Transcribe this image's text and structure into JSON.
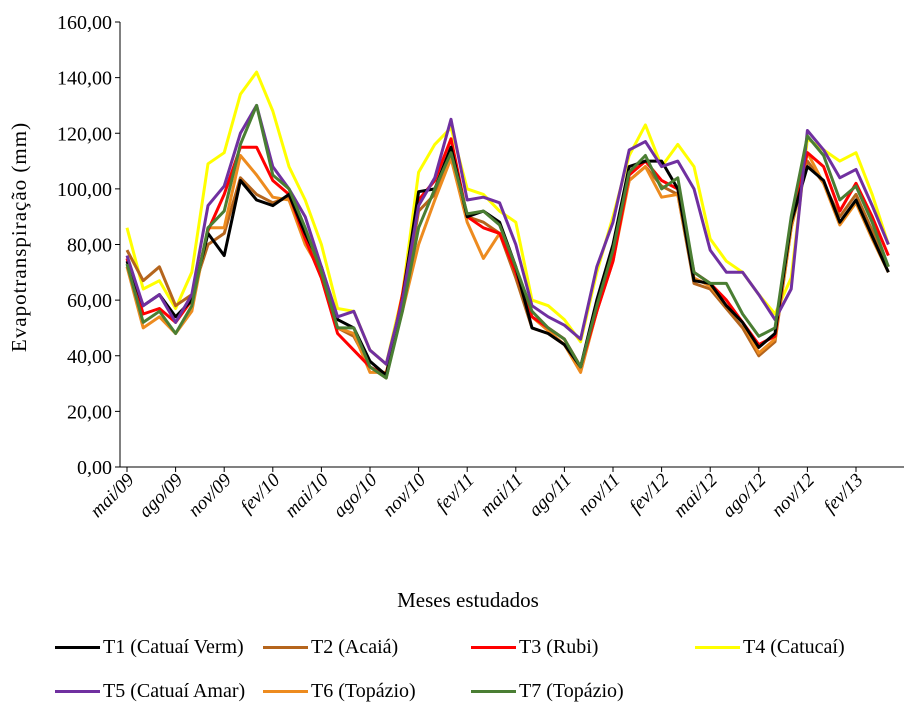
{
  "chart_data": {
    "type": "line",
    "title": "",
    "xlabel": "Meses estudados",
    "ylabel": "Evapotranspiração (mm)",
    "ylim": [
      0,
      160
    ],
    "yticks": [
      "0,00",
      "20,00",
      "40,00",
      "60,00",
      "80,00",
      "100,00",
      "120,00",
      "140,00",
      "160,00"
    ],
    "ytick_values": [
      0,
      20,
      40,
      60,
      80,
      100,
      120,
      140,
      160
    ],
    "x": [
      "mai/09",
      "jun/09",
      "jul/09",
      "ago/09",
      "set/09",
      "out/09",
      "nov/09",
      "dez/09",
      "jan/10",
      "fev/10",
      "mar/10",
      "abr/10",
      "mai/10",
      "jun/10",
      "jul/10",
      "ago/10",
      "set/10",
      "out/10",
      "nov/10",
      "dez/10",
      "jan/11",
      "fev/11",
      "mar/11",
      "abr/11",
      "mai/11",
      "jun/11",
      "jul/11",
      "ago/11",
      "set/11",
      "out/11",
      "nov/11",
      "dez/11",
      "jan/12",
      "fev/12",
      "mar/12",
      "abr/12",
      "mai/12",
      "jun/12",
      "jul/12",
      "ago/12",
      "set/12",
      "out/12",
      "nov/12",
      "dez/12",
      "jan/13",
      "fev/13",
      "mar/13",
      "abr/13"
    ],
    "xtick_labels": [
      "mai/09",
      "ago/09",
      "nov/09",
      "fev/10",
      "mai/10",
      "ago/10",
      "nov/10",
      "fev/11",
      "mai/11",
      "ago/11",
      "nov/11",
      "fev/12",
      "mai/12",
      "ago/12",
      "nov/12",
      "fev/13"
    ],
    "grid": false,
    "legend_position": "bottom",
    "series": [
      {
        "name": "T1 (Catuaí Verm)",
        "color": "#000000",
        "values": [
          74,
          58,
          62,
          54,
          60,
          84,
          76,
          103,
          96,
          94,
          98,
          84,
          72,
          53,
          50,
          38,
          33,
          60,
          99,
          100,
          115,
          90,
          92,
          88,
          72,
          50,
          48,
          44,
          36,
          60,
          80,
          108,
          110,
          110,
          100,
          67,
          66,
          58,
          52,
          43,
          48,
          88,
          108,
          103,
          88,
          96,
          83,
          70
        ]
      },
      {
        "name": "T2 (Acaiá)",
        "color": "#B5651D",
        "values": [
          78,
          67,
          72,
          58,
          62,
          80,
          84,
          104,
          98,
          95,
          97,
          82,
          68,
          50,
          47,
          36,
          32,
          58,
          92,
          98,
          112,
          90,
          88,
          84,
          68,
          50,
          48,
          44,
          35,
          56,
          78,
          103,
          108,
          101,
          98,
          66,
          64,
          57,
          50,
          40,
          45,
          86,
          110,
          102,
          90,
          98,
          85,
          72
        ]
      },
      {
        "name": "T3 (Rubi)",
        "color": "#FF0000",
        "values": [
          75,
          55,
          57,
          52,
          60,
          85,
          98,
          115,
          115,
          103,
          98,
          82,
          68,
          48,
          42,
          36,
          33,
          62,
          96,
          103,
          118,
          90,
          86,
          84,
          70,
          54,
          50,
          46,
          36,
          56,
          74,
          105,
          110,
          103,
          100,
          70,
          66,
          60,
          52,
          44,
          47,
          89,
          113,
          108,
          92,
          102,
          90,
          76
        ]
      },
      {
        "name": "T4 (Catucaí)",
        "color": "#FFFF00",
        "values": [
          86,
          64,
          67,
          57,
          70,
          109,
          113,
          134,
          142,
          128,
          108,
          96,
          80,
          57,
          56,
          42,
          37,
          62,
          106,
          116,
          122,
          100,
          98,
          92,
          88,
          60,
          58,
          53,
          45,
          70,
          90,
          112,
          123,
          108,
          116,
          108,
          82,
          74,
          70,
          62,
          55,
          68,
          118,
          114,
          110,
          113,
          98,
          80
        ]
      },
      {
        "name": "T5 (Catuaí Amar)",
        "color": "#7030A0",
        "values": [
          76,
          58,
          62,
          52,
          62,
          94,
          101,
          120,
          130,
          108,
          100,
          90,
          72,
          54,
          56,
          42,
          37,
          60,
          94,
          104,
          125,
          96,
          97,
          95,
          80,
          58,
          54,
          51,
          46,
          72,
          88,
          114,
          117,
          108,
          110,
          100,
          78,
          70,
          70,
          62,
          53,
          64,
          121,
          114,
          104,
          107,
          94,
          80
        ]
      },
      {
        "name": "T6 (Topázio)",
        "color": "#ED8B1F",
        "values": [
          72,
          50,
          54,
          48,
          56,
          86,
          86,
          112,
          105,
          97,
          96,
          80,
          70,
          50,
          48,
          34,
          34,
          56,
          80,
          96,
          111,
          88,
          75,
          84,
          70,
          54,
          49,
          44,
          34,
          56,
          74,
          103,
          108,
          97,
          98,
          68,
          65,
          58,
          52,
          41,
          46,
          86,
          113,
          102,
          87,
          95,
          82,
          70
        ]
      },
      {
        "name": "T7 (Topázio)",
        "color": "#4A7E33",
        "values": [
          73,
          52,
          56,
          48,
          58,
          86,
          92,
          116,
          130,
          105,
          100,
          86,
          70,
          50,
          50,
          36,
          32,
          56,
          86,
          100,
          113,
          91,
          92,
          87,
          72,
          56,
          50,
          46,
          36,
          58,
          78,
          106,
          112,
          100,
          104,
          70,
          66,
          66,
          55,
          47,
          50,
          90,
          119,
          112,
          96,
          101,
          88,
          72
        ]
      }
    ]
  }
}
